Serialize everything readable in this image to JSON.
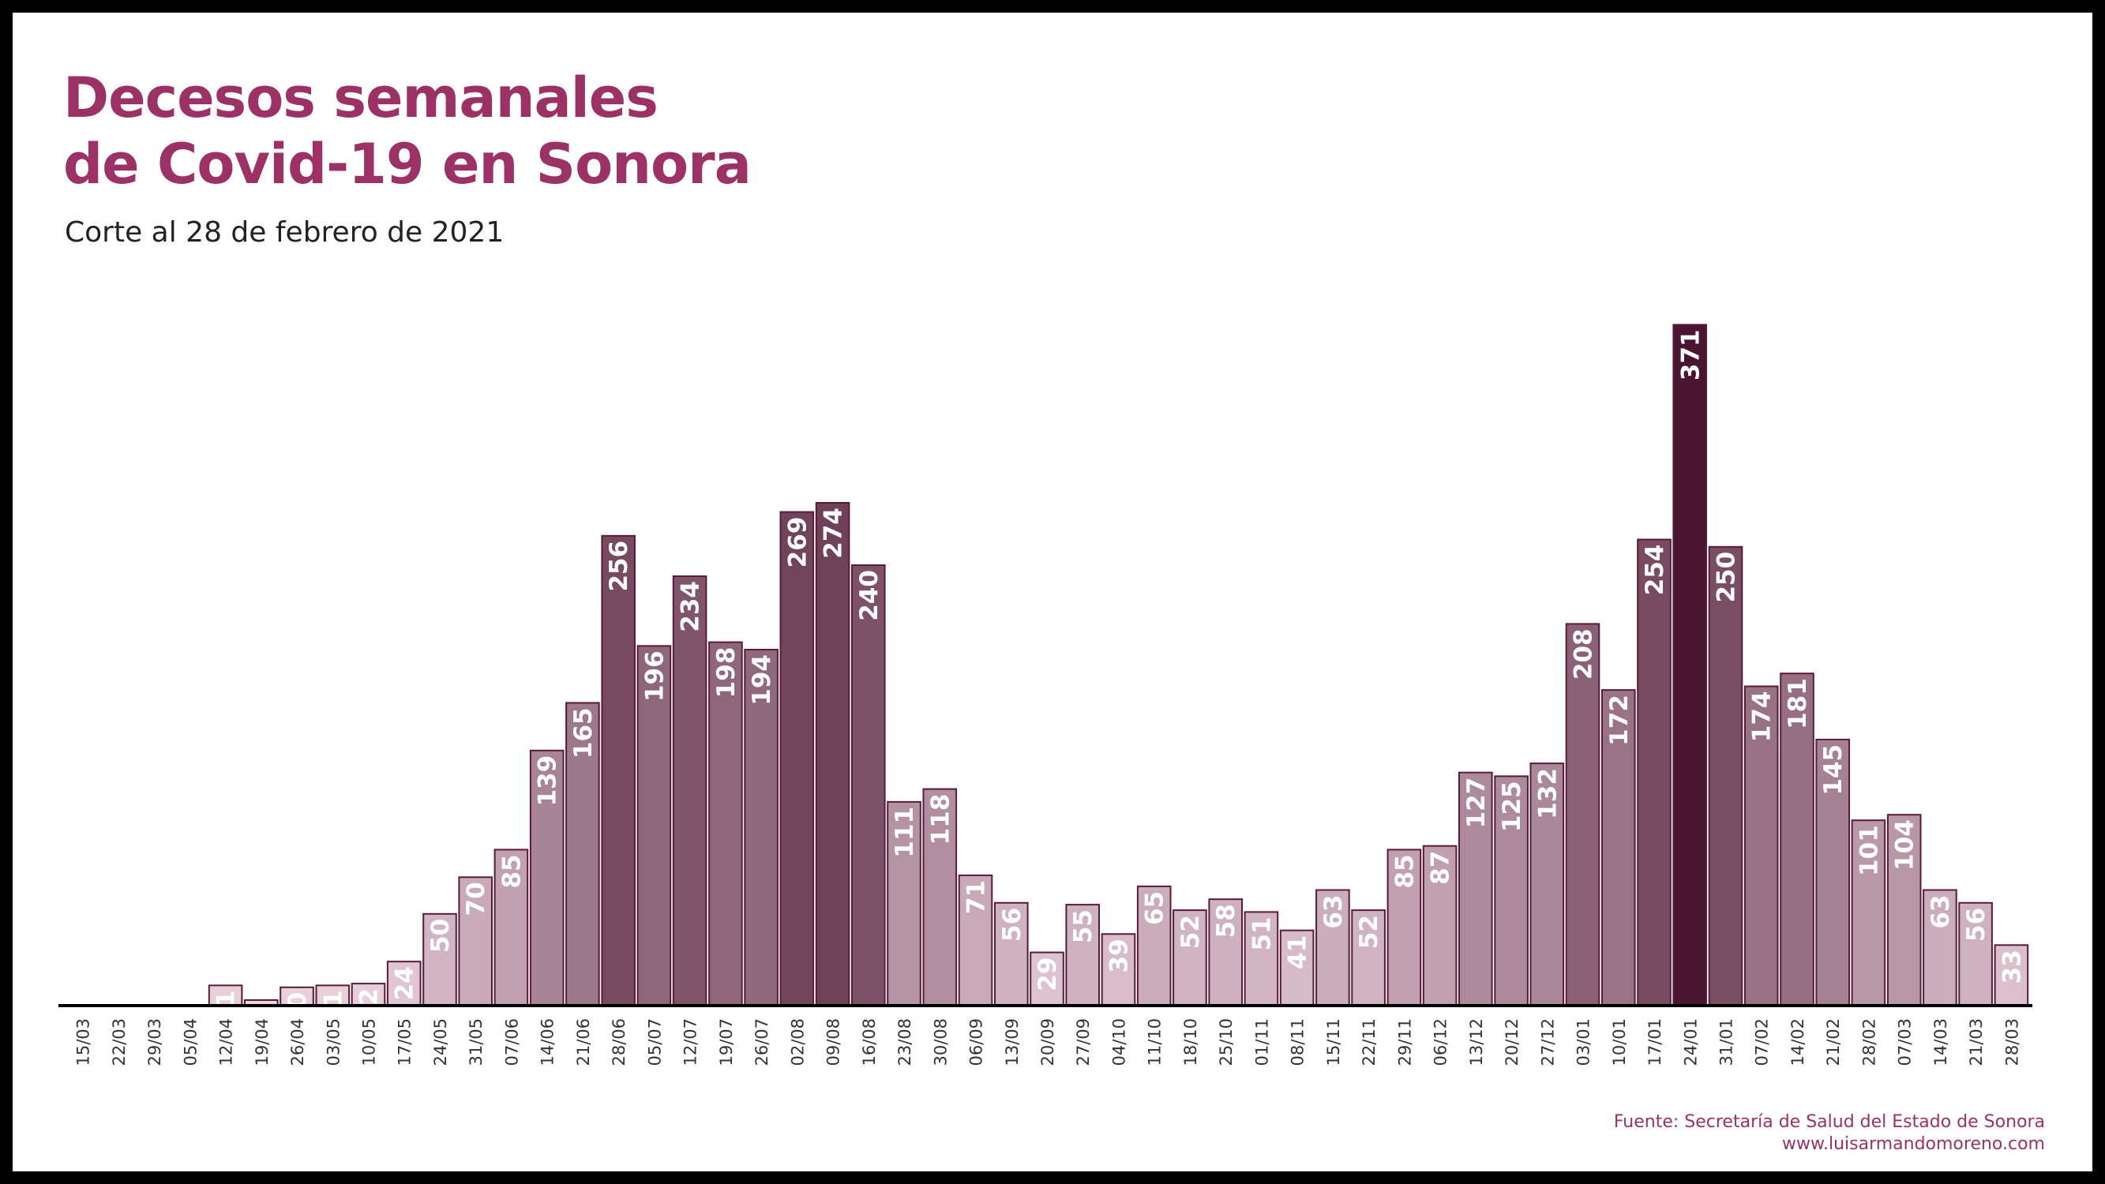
{
  "title_line1": "Decesos semanales",
  "title_line2": "de Covid-19 en Sonora",
  "subtitle": "Corte al 28 de febrero de 2021",
  "source_line1": "Fuente: Secretaría de Salud del Estado de Sonora",
  "source_line2": "www.luisarmandomoreno.com",
  "colors": {
    "title": "#9b3165",
    "axis": "#000000",
    "low": "#f0d9e3",
    "high": "#4a1531"
  },
  "chart_data": {
    "type": "bar",
    "categories": [
      "15/03",
      "22/03",
      "29/03",
      "05/04",
      "12/04",
      "19/04",
      "26/04",
      "03/05",
      "10/05",
      "17/05",
      "24/05",
      "31/05",
      "07/06",
      "14/06",
      "21/06",
      "28/06",
      "05/07",
      "12/07",
      "19/07",
      "26/07",
      "02/08",
      "09/08",
      "16/08",
      "23/08",
      "30/08",
      "06/09",
      "13/09",
      "20/09",
      "27/09",
      "04/10",
      "11/10",
      "18/10",
      "25/10",
      "01/11",
      "08/11",
      "15/11",
      "22/11",
      "29/11",
      "06/12",
      "13/12",
      "20/12",
      "27/12",
      "03/01",
      "10/01",
      "17/01",
      "24/01",
      "31/01",
      "07/02",
      "14/02",
      "21/02",
      "28/02",
      "07/03",
      "14/03",
      "21/03",
      "28/03"
    ],
    "values": [
      0,
      0,
      0,
      0,
      11,
      3,
      10,
      11,
      12,
      24,
      50,
      70,
      85,
      139,
      165,
      256,
      196,
      234,
      198,
      194,
      269,
      274,
      240,
      111,
      118,
      71,
      56,
      29,
      55,
      39,
      65,
      52,
      58,
      51,
      41,
      63,
      52,
      85,
      87,
      127,
      125,
      132,
      208,
      172,
      254,
      371,
      250,
      174,
      181,
      145,
      101,
      104,
      63,
      56,
      33
    ],
    "labels": [
      "",
      "",
      "",
      "",
      "11",
      "",
      "10",
      "11",
      "12",
      "24",
      "50",
      "70",
      "85",
      "139",
      "165",
      "256",
      "196",
      "234",
      "198",
      "194",
      "269",
      "274",
      "240",
      "111",
      "118",
      "71",
      "56",
      "29",
      "55",
      "39",
      "65",
      "52",
      "58",
      "51",
      "41",
      "63",
      "52",
      "85",
      "87",
      "127",
      "125",
      "132",
      "208",
      "172",
      "254",
      "371",
      "250",
      "174",
      "181",
      "145",
      "101",
      "104",
      "63",
      "56",
      "33"
    ],
    "ylim": [
      0,
      400
    ],
    "grid": false
  }
}
